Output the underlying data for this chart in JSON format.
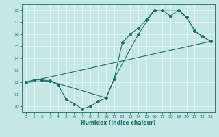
{
  "title": "",
  "xlabel": "Humidex (Indice chaleur)",
  "ylabel": "",
  "bg_color": "#c5e8e5",
  "line_color": "#1a6b6b",
  "grid_color": "#e8f8f8",
  "xlim": [
    -0.5,
    23.5
  ],
  "ylim": [
    9.5,
    18.5
  ],
  "xticks": [
    0,
    1,
    2,
    3,
    4,
    5,
    6,
    7,
    8,
    9,
    10,
    11,
    12,
    13,
    14,
    15,
    16,
    17,
    18,
    19,
    20,
    21,
    22,
    23
  ],
  "yticks": [
    10,
    11,
    12,
    13,
    14,
    15,
    16,
    17,
    18
  ],
  "line1_x": [
    0,
    1,
    2,
    3,
    4,
    5,
    6,
    7,
    8,
    9,
    10,
    11,
    12,
    13,
    14,
    15,
    16,
    17,
    18,
    19,
    20,
    21,
    22,
    23
  ],
  "line1_y": [
    12,
    12.2,
    12.2,
    12.1,
    11.8,
    10.6,
    10.2,
    9.8,
    10.0,
    10.4,
    10.7,
    12.3,
    15.3,
    16.0,
    16.5,
    17.2,
    18.0,
    18.0,
    17.5,
    18.0,
    17.4,
    16.3,
    15.8,
    15.4
  ],
  "line2_x": [
    0,
    3,
    10,
    11,
    14,
    16,
    19,
    20,
    21,
    22,
    23
  ],
  "line2_y": [
    12,
    12.1,
    10.7,
    12.3,
    16.0,
    18.0,
    18.0,
    17.4,
    16.3,
    15.8,
    15.4
  ],
  "line3_x": [
    0,
    23
  ],
  "line3_y": [
    12,
    15.4
  ]
}
